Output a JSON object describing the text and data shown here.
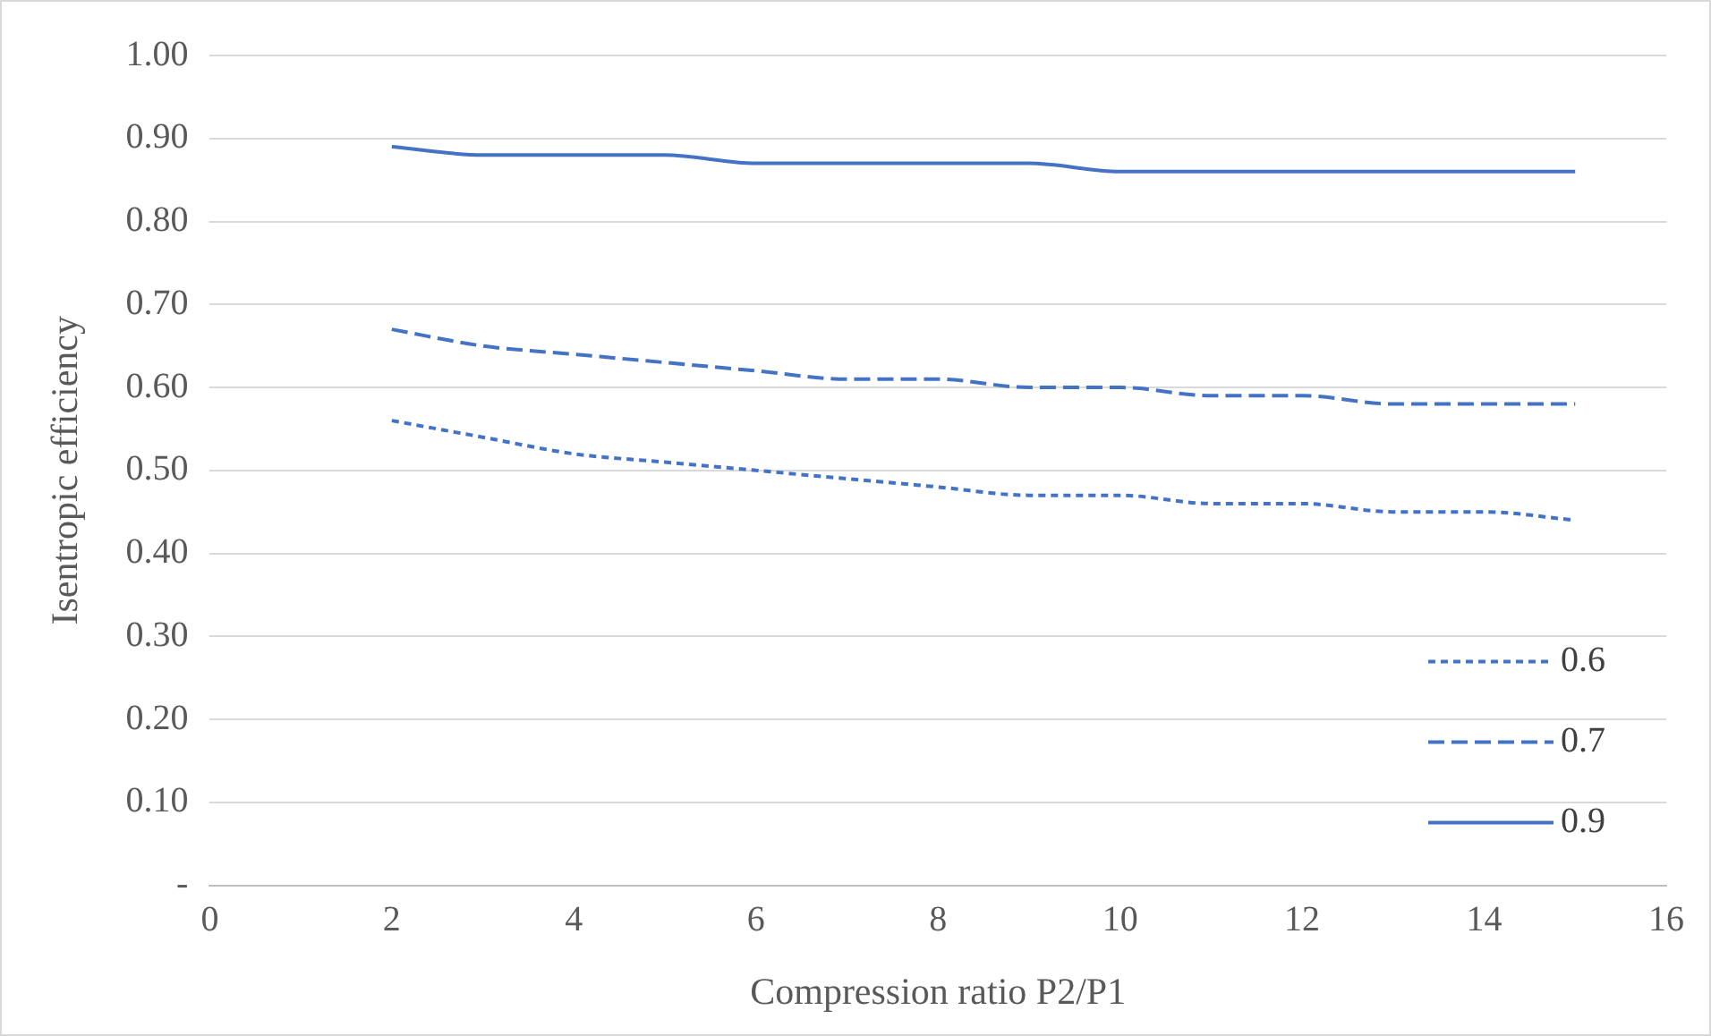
{
  "chart_data": {
    "type": "line",
    "xlabel": "Compression ratio P2/P1",
    "ylabel": "Isentropic efficiency",
    "x": [
      2,
      3,
      4,
      5,
      6,
      7,
      8,
      9,
      10,
      11,
      12,
      13,
      14,
      15
    ],
    "series": [
      {
        "name": "0.6",
        "color": "#4472c4",
        "line_style": "dotted",
        "values": [
          0.56,
          0.54,
          0.52,
          0.51,
          0.5,
          0.49,
          0.48,
          0.47,
          0.47,
          0.46,
          0.46,
          0.45,
          0.45,
          0.44
        ]
      },
      {
        "name": "0.7",
        "color": "#4472c4",
        "line_style": "dashed",
        "values": [
          0.67,
          0.65,
          0.64,
          0.63,
          0.62,
          0.61,
          0.61,
          0.6,
          0.6,
          0.59,
          0.59,
          0.58,
          0.58,
          0.58
        ]
      },
      {
        "name": "0.9",
        "color": "#4472c4",
        "line_style": "solid",
        "values": [
          0.89,
          0.88,
          0.88,
          0.88,
          0.87,
          0.87,
          0.87,
          0.87,
          0.86,
          0.86,
          0.86,
          0.86,
          0.86,
          0.86
        ]
      }
    ],
    "xlim": [
      0,
      16
    ],
    "xticks": [
      0,
      2,
      4,
      6,
      8,
      10,
      12,
      14,
      16
    ],
    "ylim": [
      0,
      1
    ],
    "yticks": [
      {
        "value": 0,
        "label": "-"
      },
      {
        "value": 0.1,
        "label": "0.10"
      },
      {
        "value": 0.2,
        "label": "0.20"
      },
      {
        "value": 0.3,
        "label": "0.30"
      },
      {
        "value": 0.4,
        "label": "0.40"
      },
      {
        "value": 0.5,
        "label": "0.50"
      },
      {
        "value": 0.6,
        "label": "0.60"
      },
      {
        "value": 0.7,
        "label": "0.70"
      },
      {
        "value": 0.8,
        "label": "0.80"
      },
      {
        "value": 0.9,
        "label": "0.90"
      },
      {
        "value": 1,
        "label": "1.00"
      }
    ],
    "grid": "y",
    "legend": "bottom right",
    "marker": "none"
  }
}
